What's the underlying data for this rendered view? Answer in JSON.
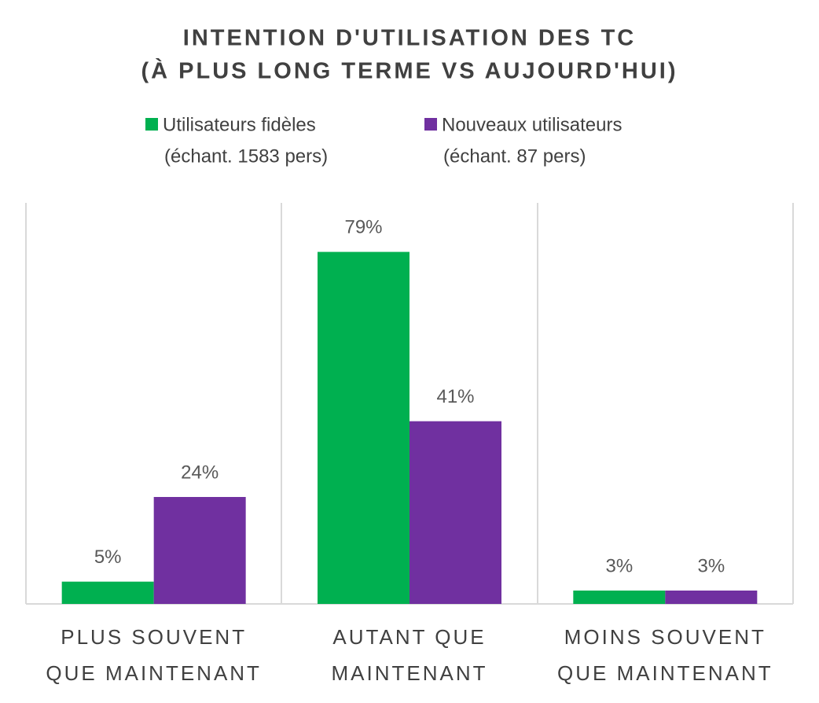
{
  "chart_data": {
    "type": "bar",
    "title": [
      "INTENTION D'UTILISATION DES TC",
      "(À PLUS LONG TERME VS AUJOURD'HUI)"
    ],
    "categories": [
      [
        "PLUS SOUVENT",
        "QUE MAINTENANT"
      ],
      [
        "AUTANT QUE",
        "MAINTENANT"
      ],
      [
        "MOINS SOUVENT",
        "QUE MAINTENANT"
      ]
    ],
    "series": [
      {
        "name": [
          "Utilisateurs fidèles",
          "(échant. 1583 pers)"
        ],
        "color": "#00b050",
        "values": [
          5,
          79,
          3
        ],
        "value_labels": [
          "5%",
          "79%",
          "3%"
        ]
      },
      {
        "name": [
          "Nouveaux utilisateurs",
          "(échant. 87 pers)"
        ],
        "color": "#7030a0",
        "values": [
          24,
          41,
          3
        ],
        "value_labels": [
          "24%",
          "41%",
          "3%"
        ]
      }
    ],
    "ylim": [
      0,
      90
    ]
  }
}
